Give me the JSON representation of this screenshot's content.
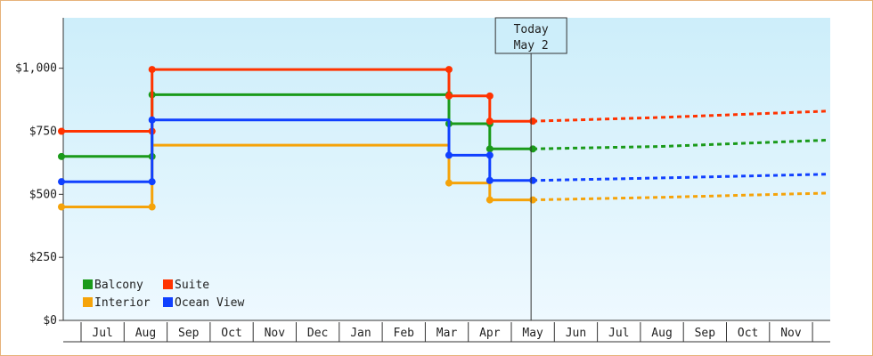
{
  "chart_data": {
    "type": "line",
    "step": true,
    "y_ticks": [
      0,
      250,
      500,
      750,
      1000
    ],
    "y_tick_labels": [
      "$0",
      "$250",
      "$500",
      "$750",
      "$1,000"
    ],
    "ylim": [
      0,
      1200
    ],
    "x_months": [
      "Jul",
      "Aug",
      "Sep",
      "Oct",
      "Nov",
      "Dec",
      "Jan",
      "Feb",
      "Mar",
      "Apr",
      "May",
      "Jun",
      "Jul",
      "Aug",
      "Sep",
      "Oct",
      "Nov"
    ],
    "today_marker": {
      "line1": "Today",
      "line2": "May 2"
    },
    "grid": false,
    "background": "light-blue gradient",
    "legend": {
      "placement": "bottom-left"
    },
    "series": [
      {
        "name": "Balcony",
        "color": "#1a9a1a",
        "history": [
          [
            0,
            650
          ],
          [
            1.65,
            650
          ],
          [
            1.65,
            895
          ],
          [
            8.55,
            895
          ],
          [
            8.55,
            780
          ],
          [
            9.5,
            780
          ],
          [
            9.5,
            680
          ],
          [
            10.5,
            680
          ]
        ],
        "history_points": [
          [
            0,
            650
          ],
          [
            1.65,
            650
          ],
          [
            1.65,
            895
          ],
          [
            8.55,
            895
          ],
          [
            8.55,
            780
          ],
          [
            9.5,
            780
          ],
          [
            9.5,
            680
          ],
          [
            10.5,
            680
          ]
        ],
        "forecast": [
          [
            10.5,
            680
          ],
          [
            13.5,
            690
          ],
          [
            17.35,
            715
          ]
        ]
      },
      {
        "name": "Suite",
        "color": "#ff3300",
        "history": [
          [
            0,
            750
          ],
          [
            1.65,
            750
          ],
          [
            1.65,
            995
          ],
          [
            8.55,
            995
          ],
          [
            8.55,
            890
          ],
          [
            9.5,
            890
          ],
          [
            9.5,
            790
          ],
          [
            10.5,
            790
          ]
        ],
        "history_points": [
          [
            0,
            750
          ],
          [
            1.65,
            750
          ],
          [
            1.65,
            995
          ],
          [
            8.55,
            995
          ],
          [
            8.55,
            890
          ],
          [
            9.5,
            890
          ],
          [
            9.5,
            790
          ],
          [
            10.5,
            790
          ]
        ],
        "forecast": [
          [
            10.5,
            790
          ],
          [
            13.5,
            805
          ],
          [
            17.35,
            830
          ]
        ]
      },
      {
        "name": "Interior",
        "color": "#f5a30a",
        "history": [
          [
            0,
            450
          ],
          [
            1.65,
            450
          ],
          [
            1.65,
            695
          ],
          [
            8.55,
            695
          ],
          [
            8.55,
            545
          ],
          [
            9.5,
            545
          ],
          [
            9.5,
            478
          ],
          [
            10.5,
            478
          ]
        ],
        "history_points": [
          [
            0,
            450
          ],
          [
            1.65,
            450
          ],
          [
            8.55,
            545
          ],
          [
            9.5,
            478
          ],
          [
            10.5,
            478
          ]
        ],
        "forecast": [
          [
            10.5,
            478
          ],
          [
            13.5,
            488
          ],
          [
            17.35,
            505
          ]
        ]
      },
      {
        "name": "Ocean View",
        "color": "#1040ff",
        "history": [
          [
            0,
            550
          ],
          [
            1.65,
            550
          ],
          [
            1.65,
            795
          ],
          [
            8.55,
            795
          ],
          [
            8.55,
            655
          ],
          [
            9.5,
            655
          ],
          [
            9.5,
            555
          ],
          [
            10.5,
            555
          ]
        ],
        "history_points": [
          [
            0,
            550
          ],
          [
            1.65,
            550
          ],
          [
            1.65,
            795
          ],
          [
            8.55,
            655
          ],
          [
            9.5,
            655
          ],
          [
            9.5,
            555
          ],
          [
            10.5,
            555
          ]
        ],
        "forecast": [
          [
            10.5,
            555
          ],
          [
            13.5,
            565
          ],
          [
            17.35,
            580
          ]
        ]
      }
    ]
  }
}
